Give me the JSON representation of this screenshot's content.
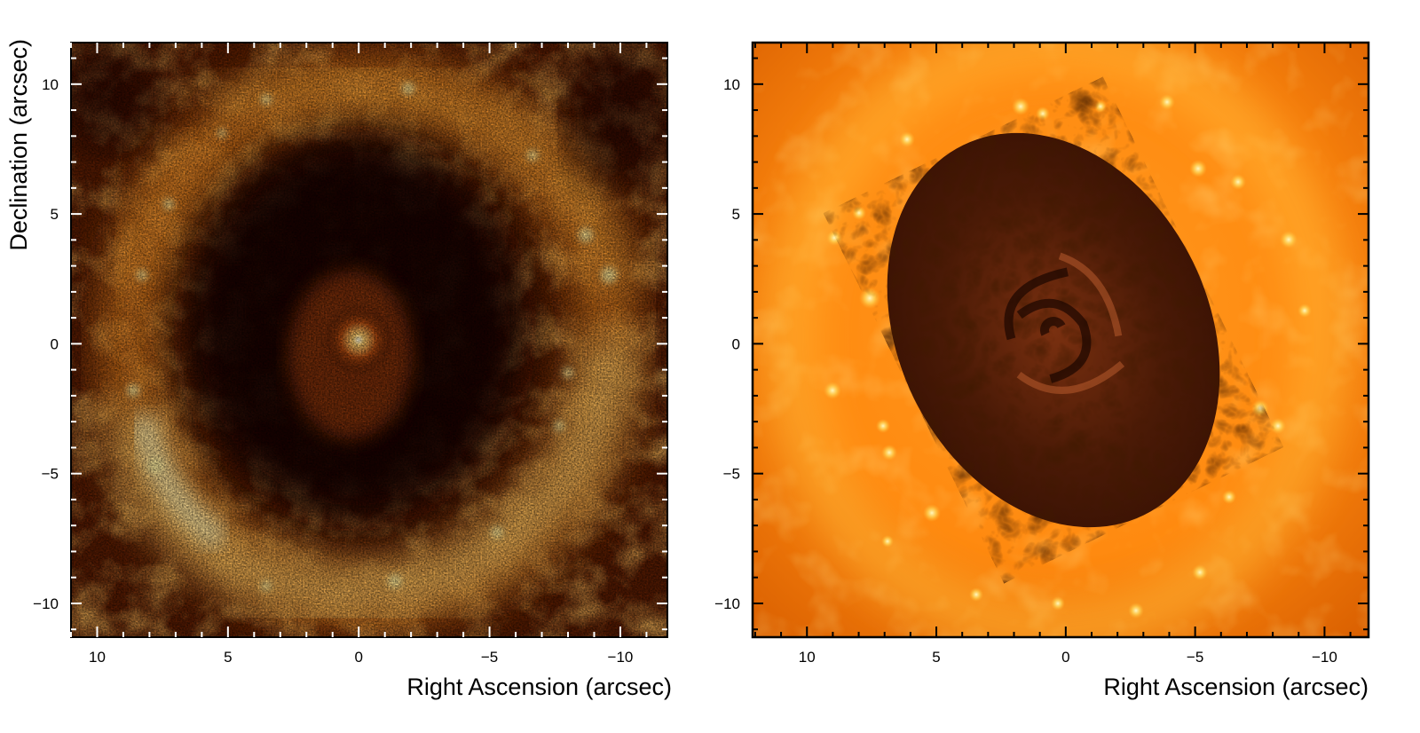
{
  "figure": {
    "left_panel": {
      "xlabel": "Right Ascension (arcsec)",
      "ylabel": "Declination (arcsec)",
      "xticks": [
        "10",
        "5",
        "0",
        "−5",
        "−10"
      ],
      "yticks": [
        "10",
        "5",
        "0",
        "−5",
        "−10"
      ],
      "xtick_values": [
        10,
        5,
        0,
        -5,
        -10
      ],
      "ytick_values": [
        10,
        5,
        0,
        -5,
        -10
      ],
      "xlim": [
        11,
        -11.8
      ],
      "ylim": [
        -11.3,
        11.6
      ],
      "colormap": [
        "#0a0300",
        "#3a1000",
        "#8a3300",
        "#d86a10",
        "#ffb040",
        "#fff2c0"
      ]
    },
    "right_panel": {
      "xlabel": "Right Ascension (arcsec)",
      "ylabel": "",
      "xticks": [
        "10",
        "5",
        "0",
        "−5",
        "−10"
      ],
      "yticks": [
        "10",
        "5",
        "0",
        "−5",
        "−10"
      ],
      "xtick_values": [
        10,
        5,
        0,
        -5,
        -10
      ],
      "ytick_values": [
        10,
        5,
        0,
        -5,
        -10
      ],
      "xlim": [
        12.1,
        -11.7
      ],
      "ylim": [
        -11.3,
        11.6
      ],
      "colormap": [
        "#2a0a00",
        "#6a2200",
        "#e06000",
        "#ff8a10",
        "#ffc040",
        "#fff6a0"
      ]
    }
  }
}
